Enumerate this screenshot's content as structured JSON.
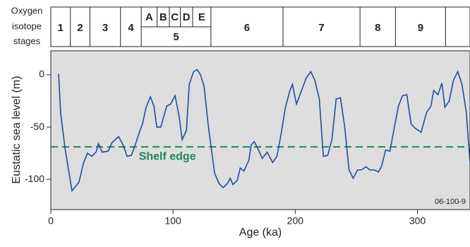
{
  "chart_data": {
    "type": "line",
    "x_label": "Age (ka)",
    "y_label": "Eustatic sea level (m)",
    "annotation": "06-100-9",
    "stage_header": [
      "Oxygen",
      "isotope",
      "stages"
    ],
    "stages": [
      "1",
      "2",
      "3",
      "4",
      "5",
      "6",
      "7",
      "8",
      "9"
    ],
    "stage_boundaries": [
      0,
      16,
      32,
      57,
      74,
      131,
      190,
      253,
      282,
      323
    ],
    "substages": [
      "A",
      "B",
      "C",
      "D",
      "E"
    ],
    "substage_boundaries": [
      74,
      87,
      97,
      106,
      116,
      131
    ],
    "reference": {
      "label": "Shelf edge",
      "value": -69,
      "color": "#1a8a5a"
    },
    "xlim": [
      0,
      343
    ],
    "ylim": [
      -129,
      23
    ],
    "xticks": [
      0,
      100,
      200,
      300
    ],
    "yticks": [
      -100,
      -50,
      0
    ],
    "series": [
      {
        "color": "#1f4e9a",
        "x": [
          6.4,
          8,
          11.6,
          17.3,
          23,
          26.6,
          30,
          33.5,
          37,
          39,
          42,
          47,
          50,
          55.5,
          59.5,
          62.4,
          66,
          69.4,
          73,
          75,
          78,
          81.5,
          84.4,
          86.7,
          90,
          94.8,
          98,
          101.7,
          105,
          107.5,
          111,
          113.3,
          116.8,
          119.7,
          122.5,
          125.4,
          129,
          134,
          137.6,
          141,
          144.5,
          146.8,
          149,
          152.6,
          155,
          158,
          162,
          164,
          166.5,
          170,
          173,
          177,
          181.5,
          185,
          188.4,
          192,
          195.4,
          197.7,
          201,
          205.8,
          209,
          212.7,
          216,
          219.7,
          223,
          226.6,
          230,
          233.5,
          237,
          240.5,
          244,
          247.4,
          251,
          254,
          258,
          261,
          264.7,
          268,
          270.5,
          274,
          277.5,
          281,
          284.4,
          287.8,
          291.3,
          294.8,
          298,
          303,
          307.5,
          311,
          313.3,
          316.8,
          320,
          322.5,
          326,
          329.5,
          333,
          336.4,
          340,
          343
        ],
        "values": [
          1,
          -36,
          -70,
          -111,
          -103,
          -85,
          -75,
          -78,
          -74,
          -66,
          -74,
          -73,
          -65,
          -59,
          -68,
          -78,
          -77,
          -66,
          -53,
          -47,
          -31,
          -21,
          -30,
          -50,
          -50,
          -30,
          -28,
          -20,
          -40,
          -62,
          -53,
          -9,
          3,
          5,
          0,
          -11,
          -50,
          -94,
          -104,
          -108,
          -104,
          -99,
          -105,
          -101,
          -89,
          -92,
          -82,
          -67,
          -64,
          -72,
          -80,
          -74,
          -84,
          -78,
          -57,
          -31,
          -16,
          -9,
          -28,
          -13,
          -3,
          3,
          -5,
          -23,
          -78,
          -77,
          -62,
          -23,
          -22,
          -50,
          -91,
          -99,
          -91,
          -91,
          -88,
          -91,
          -91,
          -93,
          -88,
          -72,
          -73,
          -51,
          -30,
          -20,
          -19,
          -47,
          -51,
          -55,
          -36,
          -30,
          -15,
          -19,
          -8,
          -31,
          -25,
          -5,
          3,
          -9,
          -36,
          -84
        ]
      }
    ]
  }
}
